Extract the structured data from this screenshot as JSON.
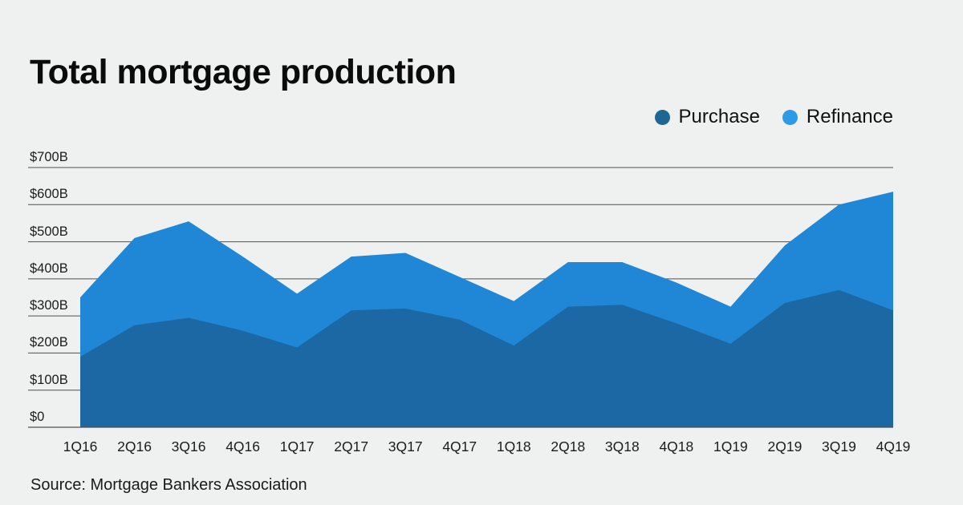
{
  "title": "Total mortgage production",
  "source": "Source: Mortgage Bankers Association",
  "legend": [
    {
      "label": "Purchase",
      "color": "#1e6795"
    },
    {
      "label": "Refinance",
      "color": "#2d9ae8"
    }
  ],
  "colors": {
    "background": "#eff1f0",
    "purchase_area": "#1c68a4",
    "refinance_area": "#1f87d5",
    "gridline": "#4f4f4f",
    "text": "#1c1c1c"
  },
  "chart_data": {
    "type": "area",
    "stacked": true,
    "title": "Total mortgage production",
    "xlabel": "",
    "ylabel": "",
    "unit": "billions USD",
    "grid": true,
    "legend_position": "top-right",
    "ylim": [
      0,
      700
    ],
    "y_tick_values": [
      700,
      600,
      500,
      400,
      300,
      200,
      100,
      0
    ],
    "y_tick_labels": [
      "$700B",
      "$600B",
      "$500B",
      "$400B",
      "$300B",
      "$200B",
      "$100B",
      "$0"
    ],
    "categories": [
      "1Q16",
      "2Q16",
      "3Q16",
      "4Q16",
      "1Q17",
      "2Q17",
      "3Q17",
      "4Q17",
      "1Q18",
      "2Q18",
      "3Q18",
      "4Q18",
      "1Q19",
      "2Q19",
      "3Q19",
      "4Q19"
    ],
    "series": [
      {
        "name": "Purchase",
        "values": [
          190,
          275,
          295,
          260,
          215,
          315,
          320,
          290,
          220,
          325,
          330,
          280,
          225,
          335,
          370,
          315
        ]
      },
      {
        "name": "Refinance",
        "values": [
          160,
          235,
          260,
          200,
          145,
          145,
          150,
          115,
          120,
          120,
          115,
          110,
          100,
          155,
          230,
          320
        ]
      }
    ],
    "stacked_totals": [
      350,
      510,
      555,
      460,
      360,
      460,
      470,
      405,
      340,
      445,
      445,
      390,
      325,
      490,
      600,
      635
    ]
  }
}
